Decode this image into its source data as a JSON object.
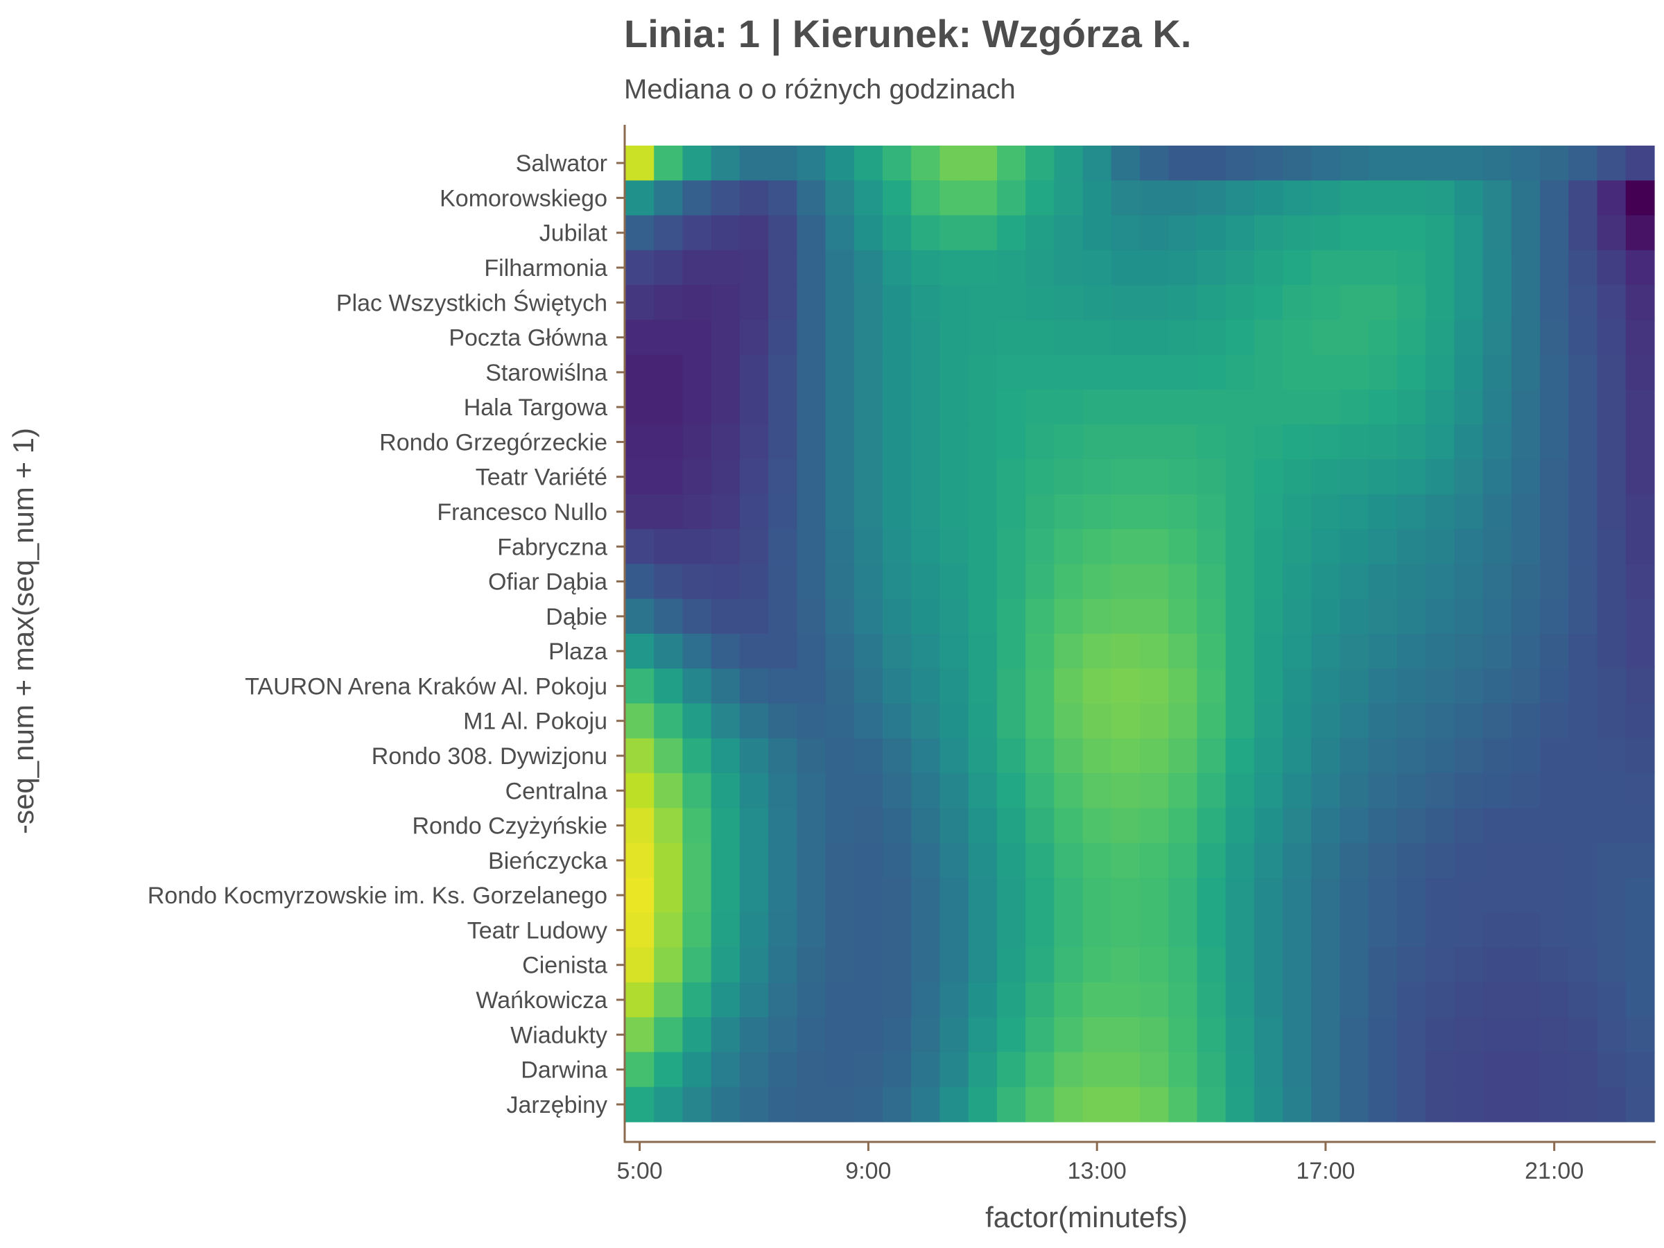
{
  "chart_data": {
    "type": "heatmap",
    "title": "Linia: 1 | Kierunek: Wzgórza K.",
    "subtitle": "Mediana o o różnych godzinach",
    "xlabel": "factor(minutefs)",
    "ylabel": "-seq_num + max(seq_num + 1)",
    "x_ticks": [
      "5:00",
      "9:00",
      "13:00",
      "17:00",
      "21:00"
    ],
    "x_range": [
      "4:45",
      "22:45"
    ],
    "x_step_minutes": 30,
    "colormap": "viridis",
    "grid": false,
    "legend": "none",
    "stops": [
      "Salwator",
      "Komorowskiego",
      "Jubilat",
      "Filharmonia",
      "Plac Wszystkich Świętych",
      "Poczta Główna",
      "Starowiślna",
      "Hala Targowa",
      "Rondo Grzegórzeckie",
      "Teatr Variété",
      "Francesco Nullo",
      "Fabryczna",
      "Ofiar Dąbia",
      "Dąbie",
      "Plaza",
      "TAURON Arena Kraków Al. Pokoju",
      "M1 Al. Pokoju",
      "Rondo 308. Dywizjonu",
      "Centralna",
      "Rondo Czyżyńskie",
      "Bieńczycka",
      "Rondo Kocmyrzowskie im. Ks. Gorzelanego",
      "Teatr Ludowy",
      "Cienista",
      "Wańkowicza",
      "Wiadukty",
      "Darwina",
      "Jarzębiny"
    ],
    "values": [
      [
        0.92,
        0.68,
        0.55,
        0.45,
        0.38,
        0.38,
        0.42,
        0.5,
        0.58,
        0.65,
        0.72,
        0.78,
        0.78,
        0.7,
        0.62,
        0.55,
        0.48,
        0.38,
        0.32,
        0.28,
        0.28,
        0.3,
        0.32,
        0.34,
        0.36,
        0.38,
        0.4,
        0.4,
        0.4,
        0.4,
        0.38,
        0.36,
        0.34,
        0.3,
        0.25,
        0.2
      ],
      [
        0.5,
        0.4,
        0.3,
        0.25,
        0.22,
        0.25,
        0.35,
        0.45,
        0.52,
        0.6,
        0.68,
        0.72,
        0.72,
        0.66,
        0.6,
        0.55,
        0.5,
        0.45,
        0.44,
        0.44,
        0.46,
        0.48,
        0.5,
        0.52,
        0.54,
        0.56,
        0.56,
        0.56,
        0.55,
        0.5,
        0.45,
        0.38,
        0.3,
        0.22,
        0.12,
        0.0
      ],
      [
        0.3,
        0.25,
        0.2,
        0.18,
        0.17,
        0.22,
        0.32,
        0.42,
        0.5,
        0.56,
        0.62,
        0.64,
        0.64,
        0.6,
        0.56,
        0.53,
        0.5,
        0.48,
        0.47,
        0.48,
        0.5,
        0.52,
        0.55,
        0.57,
        0.58,
        0.6,
        0.6,
        0.6,
        0.58,
        0.52,
        0.45,
        0.38,
        0.3,
        0.22,
        0.14,
        0.05
      ],
      [
        0.2,
        0.18,
        0.15,
        0.15,
        0.16,
        0.22,
        0.32,
        0.4,
        0.46,
        0.52,
        0.56,
        0.58,
        0.58,
        0.57,
        0.55,
        0.53,
        0.52,
        0.5,
        0.5,
        0.51,
        0.53,
        0.55,
        0.58,
        0.6,
        0.62,
        0.62,
        0.62,
        0.61,
        0.58,
        0.52,
        0.46,
        0.38,
        0.3,
        0.24,
        0.18,
        0.12
      ],
      [
        0.16,
        0.14,
        0.13,
        0.14,
        0.16,
        0.22,
        0.32,
        0.4,
        0.45,
        0.5,
        0.54,
        0.56,
        0.57,
        0.57,
        0.56,
        0.55,
        0.54,
        0.53,
        0.53,
        0.54,
        0.56,
        0.58,
        0.6,
        0.62,
        0.63,
        0.64,
        0.64,
        0.62,
        0.58,
        0.52,
        0.46,
        0.38,
        0.3,
        0.25,
        0.2,
        0.14
      ],
      [
        0.12,
        0.12,
        0.12,
        0.14,
        0.17,
        0.23,
        0.32,
        0.4,
        0.45,
        0.5,
        0.53,
        0.56,
        0.57,
        0.58,
        0.58,
        0.57,
        0.57,
        0.56,
        0.56,
        0.57,
        0.58,
        0.6,
        0.62,
        0.63,
        0.64,
        0.64,
        0.63,
        0.61,
        0.57,
        0.51,
        0.45,
        0.38,
        0.31,
        0.26,
        0.21,
        0.15
      ],
      [
        0.1,
        0.1,
        0.12,
        0.14,
        0.18,
        0.24,
        0.32,
        0.4,
        0.45,
        0.5,
        0.53,
        0.56,
        0.58,
        0.59,
        0.59,
        0.59,
        0.59,
        0.59,
        0.59,
        0.59,
        0.6,
        0.61,
        0.62,
        0.63,
        0.63,
        0.63,
        0.62,
        0.6,
        0.56,
        0.5,
        0.44,
        0.38,
        0.32,
        0.27,
        0.22,
        0.16
      ],
      [
        0.1,
        0.1,
        0.12,
        0.14,
        0.18,
        0.24,
        0.32,
        0.4,
        0.45,
        0.5,
        0.53,
        0.56,
        0.58,
        0.6,
        0.61,
        0.61,
        0.62,
        0.62,
        0.62,
        0.62,
        0.62,
        0.62,
        0.62,
        0.62,
        0.62,
        0.61,
        0.6,
        0.58,
        0.54,
        0.49,
        0.43,
        0.37,
        0.32,
        0.27,
        0.22,
        0.17
      ],
      [
        0.11,
        0.11,
        0.13,
        0.15,
        0.19,
        0.24,
        0.32,
        0.4,
        0.45,
        0.5,
        0.53,
        0.56,
        0.58,
        0.6,
        0.62,
        0.63,
        0.64,
        0.64,
        0.64,
        0.64,
        0.63,
        0.62,
        0.61,
        0.6,
        0.59,
        0.58,
        0.57,
        0.55,
        0.52,
        0.47,
        0.42,
        0.37,
        0.32,
        0.27,
        0.22,
        0.17
      ],
      [
        0.12,
        0.12,
        0.14,
        0.16,
        0.2,
        0.25,
        0.32,
        0.4,
        0.45,
        0.5,
        0.53,
        0.56,
        0.58,
        0.61,
        0.63,
        0.64,
        0.65,
        0.66,
        0.66,
        0.65,
        0.64,
        0.62,
        0.6,
        0.58,
        0.56,
        0.55,
        0.54,
        0.52,
        0.49,
        0.45,
        0.41,
        0.36,
        0.31,
        0.27,
        0.22,
        0.17
      ],
      [
        0.14,
        0.14,
        0.15,
        0.17,
        0.21,
        0.26,
        0.32,
        0.4,
        0.45,
        0.5,
        0.53,
        0.56,
        0.58,
        0.61,
        0.64,
        0.66,
        0.67,
        0.68,
        0.68,
        0.67,
        0.65,
        0.62,
        0.59,
        0.56,
        0.54,
        0.52,
        0.5,
        0.48,
        0.46,
        0.43,
        0.39,
        0.35,
        0.31,
        0.27,
        0.22,
        0.18
      ],
      [
        0.2,
        0.18,
        0.18,
        0.19,
        0.22,
        0.27,
        0.32,
        0.39,
        0.44,
        0.49,
        0.52,
        0.55,
        0.58,
        0.62,
        0.65,
        0.68,
        0.7,
        0.71,
        0.71,
        0.69,
        0.66,
        0.62,
        0.58,
        0.55,
        0.52,
        0.5,
        0.48,
        0.46,
        0.44,
        0.41,
        0.38,
        0.35,
        0.31,
        0.27,
        0.23,
        0.18
      ],
      [
        0.28,
        0.24,
        0.22,
        0.21,
        0.23,
        0.27,
        0.32,
        0.38,
        0.43,
        0.48,
        0.51,
        0.54,
        0.58,
        0.62,
        0.66,
        0.7,
        0.72,
        0.73,
        0.73,
        0.71,
        0.67,
        0.62,
        0.58,
        0.54,
        0.51,
        0.48,
        0.46,
        0.44,
        0.42,
        0.4,
        0.37,
        0.34,
        0.31,
        0.27,
        0.23,
        0.19
      ],
      [
        0.38,
        0.32,
        0.27,
        0.24,
        0.24,
        0.27,
        0.31,
        0.37,
        0.42,
        0.47,
        0.5,
        0.53,
        0.58,
        0.63,
        0.68,
        0.72,
        0.74,
        0.75,
        0.75,
        0.72,
        0.68,
        0.62,
        0.57,
        0.53,
        0.5,
        0.47,
        0.45,
        0.43,
        0.41,
        0.39,
        0.36,
        0.33,
        0.3,
        0.27,
        0.23,
        0.2
      ],
      [
        0.52,
        0.44,
        0.36,
        0.3,
        0.27,
        0.27,
        0.3,
        0.35,
        0.4,
        0.45,
        0.48,
        0.52,
        0.57,
        0.63,
        0.69,
        0.74,
        0.77,
        0.78,
        0.77,
        0.74,
        0.69,
        0.62,
        0.56,
        0.52,
        0.48,
        0.45,
        0.43,
        0.41,
        0.39,
        0.37,
        0.35,
        0.32,
        0.29,
        0.26,
        0.23,
        0.2
      ],
      [
        0.66,
        0.56,
        0.46,
        0.38,
        0.32,
        0.3,
        0.3,
        0.34,
        0.38,
        0.43,
        0.47,
        0.51,
        0.57,
        0.64,
        0.7,
        0.76,
        0.79,
        0.8,
        0.79,
        0.76,
        0.7,
        0.62,
        0.56,
        0.51,
        0.47,
        0.44,
        0.41,
        0.39,
        0.37,
        0.35,
        0.33,
        0.31,
        0.28,
        0.26,
        0.24,
        0.22
      ],
      [
        0.76,
        0.66,
        0.55,
        0.45,
        0.38,
        0.34,
        0.32,
        0.33,
        0.36,
        0.41,
        0.45,
        0.5,
        0.56,
        0.64,
        0.7,
        0.75,
        0.78,
        0.79,
        0.78,
        0.75,
        0.69,
        0.62,
        0.55,
        0.5,
        0.46,
        0.42,
        0.39,
        0.37,
        0.35,
        0.33,
        0.31,
        0.29,
        0.27,
        0.26,
        0.24,
        0.23
      ],
      [
        0.85,
        0.74,
        0.62,
        0.52,
        0.44,
        0.38,
        0.34,
        0.32,
        0.33,
        0.37,
        0.42,
        0.48,
        0.55,
        0.62,
        0.68,
        0.73,
        0.76,
        0.77,
        0.76,
        0.73,
        0.67,
        0.6,
        0.54,
        0.49,
        0.44,
        0.4,
        0.37,
        0.35,
        0.33,
        0.31,
        0.29,
        0.28,
        0.26,
        0.26,
        0.25,
        0.24
      ],
      [
        0.9,
        0.8,
        0.67,
        0.56,
        0.47,
        0.4,
        0.35,
        0.32,
        0.32,
        0.35,
        0.4,
        0.46,
        0.53,
        0.6,
        0.66,
        0.71,
        0.74,
        0.75,
        0.74,
        0.71,
        0.65,
        0.58,
        0.52,
        0.47,
        0.42,
        0.38,
        0.35,
        0.33,
        0.31,
        0.29,
        0.28,
        0.27,
        0.26,
        0.26,
        0.26,
        0.25
      ],
      [
        0.94,
        0.84,
        0.7,
        0.58,
        0.48,
        0.41,
        0.35,
        0.32,
        0.31,
        0.33,
        0.38,
        0.44,
        0.51,
        0.58,
        0.64,
        0.69,
        0.72,
        0.73,
        0.72,
        0.69,
        0.63,
        0.56,
        0.5,
        0.45,
        0.4,
        0.36,
        0.33,
        0.31,
        0.29,
        0.27,
        0.26,
        0.26,
        0.26,
        0.26,
        0.26,
        0.26
      ],
      [
        0.96,
        0.86,
        0.71,
        0.58,
        0.48,
        0.41,
        0.35,
        0.31,
        0.3,
        0.32,
        0.36,
        0.42,
        0.49,
        0.56,
        0.62,
        0.67,
        0.7,
        0.71,
        0.7,
        0.67,
        0.61,
        0.54,
        0.48,
        0.43,
        0.38,
        0.34,
        0.31,
        0.29,
        0.27,
        0.26,
        0.25,
        0.25,
        0.25,
        0.26,
        0.27,
        0.27
      ],
      [
        0.97,
        0.86,
        0.71,
        0.58,
        0.48,
        0.41,
        0.35,
        0.31,
        0.3,
        0.31,
        0.35,
        0.41,
        0.48,
        0.55,
        0.61,
        0.66,
        0.69,
        0.7,
        0.69,
        0.66,
        0.6,
        0.53,
        0.47,
        0.42,
        0.37,
        0.33,
        0.3,
        0.28,
        0.26,
        0.25,
        0.25,
        0.25,
        0.25,
        0.26,
        0.27,
        0.28
      ],
      [
        0.96,
        0.84,
        0.7,
        0.57,
        0.47,
        0.4,
        0.35,
        0.31,
        0.3,
        0.31,
        0.35,
        0.41,
        0.48,
        0.55,
        0.61,
        0.66,
        0.69,
        0.7,
        0.69,
        0.66,
        0.6,
        0.53,
        0.47,
        0.42,
        0.37,
        0.33,
        0.3,
        0.28,
        0.26,
        0.25,
        0.24,
        0.24,
        0.25,
        0.26,
        0.27,
        0.28
      ],
      [
        0.94,
        0.82,
        0.67,
        0.55,
        0.46,
        0.39,
        0.34,
        0.31,
        0.3,
        0.31,
        0.35,
        0.41,
        0.48,
        0.56,
        0.62,
        0.67,
        0.7,
        0.71,
        0.7,
        0.67,
        0.61,
        0.53,
        0.47,
        0.42,
        0.37,
        0.33,
        0.29,
        0.27,
        0.25,
        0.24,
        0.23,
        0.23,
        0.24,
        0.25,
        0.27,
        0.28
      ],
      [
        0.88,
        0.76,
        0.62,
        0.51,
        0.43,
        0.37,
        0.33,
        0.3,
        0.3,
        0.31,
        0.36,
        0.42,
        0.5,
        0.58,
        0.64,
        0.69,
        0.72,
        0.72,
        0.71,
        0.68,
        0.62,
        0.54,
        0.47,
        0.42,
        0.37,
        0.33,
        0.29,
        0.26,
        0.24,
        0.23,
        0.22,
        0.22,
        0.23,
        0.24,
        0.26,
        0.28
      ],
      [
        0.8,
        0.68,
        0.56,
        0.46,
        0.39,
        0.35,
        0.32,
        0.3,
        0.3,
        0.32,
        0.37,
        0.44,
        0.52,
        0.6,
        0.66,
        0.71,
        0.74,
        0.74,
        0.73,
        0.69,
        0.63,
        0.55,
        0.48,
        0.42,
        0.37,
        0.32,
        0.28,
        0.25,
        0.23,
        0.22,
        0.21,
        0.21,
        0.22,
        0.23,
        0.25,
        0.27
      ],
      [
        0.7,
        0.6,
        0.5,
        0.42,
        0.37,
        0.33,
        0.31,
        0.3,
        0.31,
        0.33,
        0.39,
        0.46,
        0.55,
        0.63,
        0.69,
        0.74,
        0.76,
        0.76,
        0.74,
        0.7,
        0.64,
        0.56,
        0.48,
        0.42,
        0.37,
        0.32,
        0.28,
        0.25,
        0.22,
        0.21,
        0.2,
        0.2,
        0.21,
        0.22,
        0.24,
        0.26
      ],
      [
        0.6,
        0.52,
        0.45,
        0.39,
        0.35,
        0.32,
        0.31,
        0.31,
        0.32,
        0.35,
        0.41,
        0.49,
        0.58,
        0.66,
        0.72,
        0.77,
        0.79,
        0.79,
        0.77,
        0.72,
        0.65,
        0.57,
        0.49,
        0.43,
        0.37,
        0.32,
        0.28,
        0.25,
        0.22,
        0.21,
        0.2,
        0.2,
        0.21,
        0.22,
        0.23,
        0.25
      ]
    ]
  }
}
